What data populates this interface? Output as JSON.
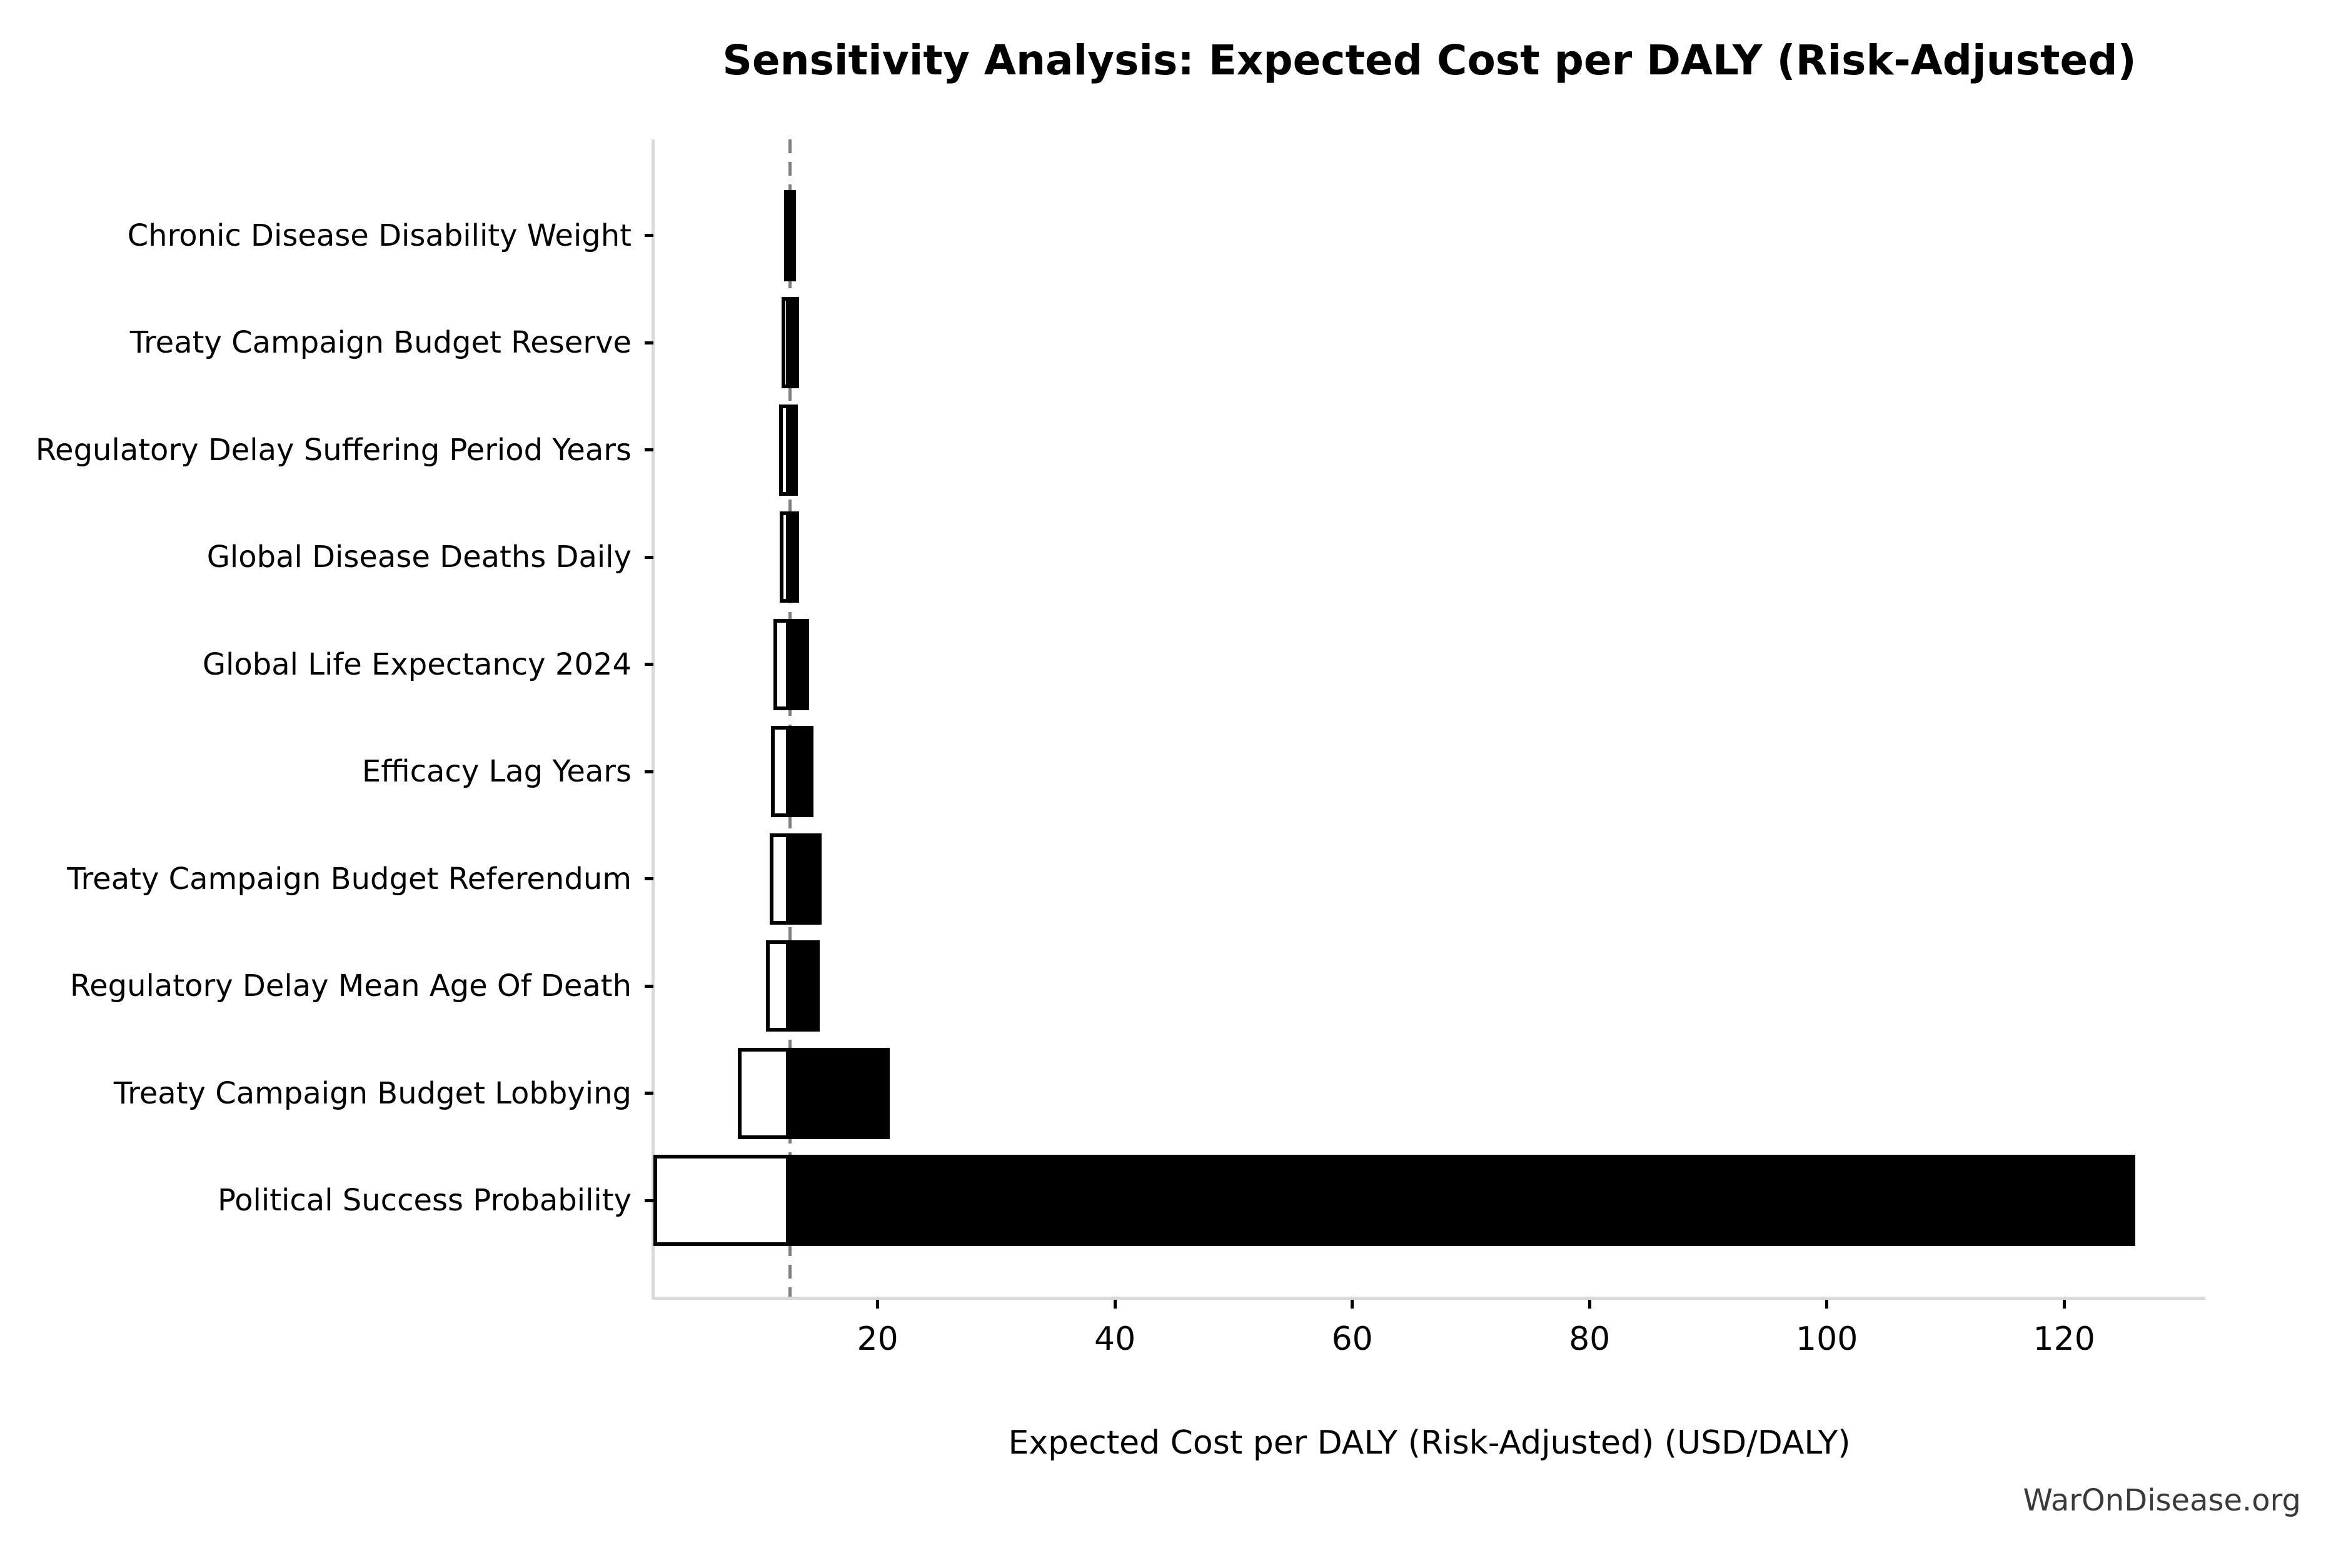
{
  "page": {
    "watermark": "WarOnDisease.org"
  },
  "chart_data": {
    "type": "bar",
    "subtype": "tornado-horizontal",
    "title": "Sensitivity Analysis: Expected Cost per DALY (Risk-Adjusted)",
    "xlabel": "Expected Cost per DALY (Risk-Adjusted) (USD/DALY)",
    "ylabel": "",
    "baseline": 12.6,
    "xlim": [
      1.1,
      131.9
    ],
    "x_ticks": [
      20,
      40,
      60,
      80,
      100,
      120
    ],
    "grid": "off",
    "legend": "none",
    "categories": [
      {
        "label": "Chronic Disease Disability Weight",
        "low": 12.1,
        "high": 13.1
      },
      {
        "label": "Treaty Campaign Budget Reserve",
        "low": 11.9,
        "high": 13.4
      },
      {
        "label": "Regulatory Delay Suffering Period Years",
        "low": 11.7,
        "high": 13.3
      },
      {
        "label": "Global Disease Deaths Daily",
        "low": 11.75,
        "high": 13.4
      },
      {
        "label": "Global Life Expectancy 2024",
        "low": 11.2,
        "high": 14.2
      },
      {
        "label": "Efficacy Lag Years",
        "low": 11.0,
        "high": 14.6
      },
      {
        "label": "Treaty Campaign Budget Referendum",
        "low": 10.9,
        "high": 15.3
      },
      {
        "label": "Regulatory Delay Mean Age Of Death",
        "low": 10.6,
        "high": 15.1
      },
      {
        "label": "Treaty Campaign Budget Lobbying",
        "low": 8.2,
        "high": 21.0
      },
      {
        "label": "Political Success Probability",
        "low": 1.1,
        "high": 126.0
      }
    ],
    "colors": {
      "low_bar_fill": "#ffffff",
      "low_bar_edge": "#000000",
      "high_bar_fill": "#000000",
      "baseline_line": "#7f7f7f",
      "spine": "#d9d9d9",
      "text": "#000000",
      "watermark_text": "#3a3a3a"
    }
  }
}
